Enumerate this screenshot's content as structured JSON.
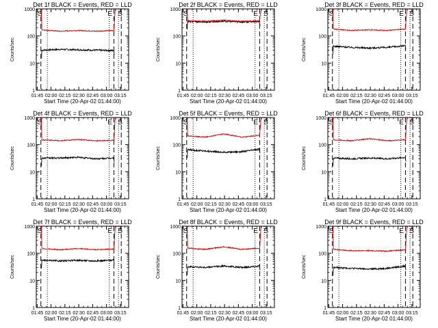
{
  "layout": {
    "rows": 3,
    "cols": 3
  },
  "common": {
    "ylabel": "Counts/sec",
    "xlabel": "Start Time (20-Apr-02 01:44:00)",
    "yticks": [
      "1",
      "10",
      "100",
      "1000"
    ],
    "xticks": [
      "01:45",
      "02:00",
      "02:15",
      "02:30",
      "02:45",
      "03:00",
      "03:15"
    ],
    "markers": [
      "S",
      "E",
      "S"
    ],
    "colors": {
      "events": "#000000",
      "lld": "#dd0000",
      "axes": "#000000"
    }
  },
  "chart_data": [
    {
      "type": "line",
      "title": "Det 1f BLACK = Events, RED = LLD",
      "yscale": "log",
      "ylim": [
        1,
        1000
      ],
      "xlim": [
        "01:44",
        "03:24"
      ],
      "grid": false,
      "x_range": [
        "01:50",
        "03:08"
      ],
      "series": [
        {
          "name": "Events",
          "values": [
            30,
            32,
            31,
            30,
            29
          ]
        },
        {
          "name": "LLD",
          "values": [
            170,
            150,
            160,
            150,
            160
          ]
        }
      ],
      "dashed_lines": [
        "01:49",
        "03:08",
        "03:16"
      ],
      "dotted_lines": [
        "01:56",
        "03:03",
        "03:13"
      ]
    },
    {
      "type": "line",
      "title": "Det 2f BLACK = Events, RED = LLD",
      "yscale": "log",
      "ylim": [
        1,
        1000
      ],
      "xlim": [
        "01:44",
        "03:24"
      ],
      "grid": false,
      "x_range": [
        "01:50",
        "03:08"
      ],
      "series": [
        {
          "name": "Events",
          "values": [
            340,
            330,
            350,
            330,
            340
          ]
        },
        {
          "name": "LLD",
          "values": [
            360,
            350,
            380,
            350,
            360
          ]
        }
      ],
      "dashed_lines": [
        "01:49",
        "03:08",
        "03:16"
      ],
      "dotted_lines": [
        "01:56",
        "03:03",
        "03:13"
      ]
    },
    {
      "type": "line",
      "title": "Det 3f BLACK = Events, RED = LLD",
      "yscale": "log",
      "ylim": [
        1,
        1000
      ],
      "xlim": [
        "01:44",
        "03:24"
      ],
      "grid": false,
      "x_range": [
        "01:50",
        "03:08"
      ],
      "series": [
        {
          "name": "Events",
          "values": [
            42,
            38,
            36,
            38,
            44
          ]
        },
        {
          "name": "LLD",
          "values": [
            180,
            160,
            170,
            160,
            180
          ]
        }
      ],
      "dashed_lines": [
        "01:49",
        "03:08",
        "03:16"
      ],
      "dotted_lines": [
        "01:56",
        "03:03",
        "03:13"
      ]
    },
    {
      "type": "line",
      "title": "Det 4f BLACK = Events, RED = LLD",
      "yscale": "log",
      "ylim": [
        1,
        1000
      ],
      "xlim": [
        "01:44",
        "03:24"
      ],
      "grid": false,
      "x_range": [
        "01:50",
        "03:08"
      ],
      "series": [
        {
          "name": "Events",
          "values": [
            32,
            32,
            34,
            30,
            32
          ]
        },
        {
          "name": "LLD",
          "values": [
            150,
            140,
            155,
            140,
            145
          ]
        }
      ],
      "dashed_lines": [
        "01:49",
        "03:08",
        "03:16"
      ],
      "dotted_lines": [
        "01:56",
        "03:03",
        "03:13"
      ]
    },
    {
      "type": "line",
      "title": "Det 5f BLACK = Events, RED = LLD",
      "yscale": "log",
      "ylim": [
        1,
        1000
      ],
      "xlim": [
        "01:44",
        "03:24"
      ],
      "grid": false,
      "x_range": [
        "01:50",
        "03:08"
      ],
      "series": [
        {
          "name": "Events",
          "values": [
            65,
            58,
            52,
            55,
            68
          ]
        },
        {
          "name": "LLD",
          "values": [
            210,
            190,
            250,
            190,
            220
          ]
        }
      ],
      "dashed_lines": [
        "01:49",
        "03:08",
        "03:16"
      ],
      "dotted_lines": [
        "01:56",
        "03:03",
        "03:13"
      ]
    },
    {
      "type": "line",
      "title": "Det 6f BLACK = Events, RED = LLD",
      "yscale": "log",
      "ylim": [
        1,
        1000
      ],
      "xlim": [
        "01:44",
        "03:24"
      ],
      "grid": false,
      "x_range": [
        "01:50",
        "03:08"
      ],
      "series": [
        {
          "name": "Events",
          "values": [
            32,
            30,
            32,
            30,
            34
          ]
        },
        {
          "name": "LLD",
          "values": [
            150,
            140,
            165,
            140,
            150
          ]
        }
      ],
      "dashed_lines": [
        "01:49",
        "03:08",
        "03:16"
      ],
      "dotted_lines": [
        "01:56",
        "03:03",
        "03:13"
      ]
    },
    {
      "type": "line",
      "title": "Det 7f BLACK = Events, RED = LLD",
      "yscale": "log",
      "ylim": [
        1,
        1000
      ],
      "xlim": [
        "01:44",
        "03:24"
      ],
      "grid": false,
      "x_range": [
        "01:50",
        "03:08"
      ],
      "series": [
        {
          "name": "Events",
          "values": [
            55,
            52,
            55,
            52,
            56
          ]
        },
        {
          "name": "LLD",
          "values": [
            150,
            135,
            150,
            135,
            145
          ]
        }
      ],
      "dashed_lines": [
        "01:49",
        "03:08",
        "03:16"
      ],
      "dotted_lines": [
        "01:56",
        "03:03",
        "03:13"
      ]
    },
    {
      "type": "line",
      "title": "Det 8f BLACK = Events, RED = LLD",
      "yscale": "log",
      "ylim": [
        1,
        1000
      ],
      "xlim": [
        "01:44",
        "03:24"
      ],
      "grid": false,
      "x_range": [
        "01:50",
        "03:08"
      ],
      "series": [
        {
          "name": "Events",
          "values": [
            32,
            30,
            34,
            30,
            34
          ]
        },
        {
          "name": "LLD",
          "values": [
            155,
            140,
            175,
            140,
            155
          ]
        }
      ],
      "dashed_lines": [
        "01:49",
        "03:08",
        "03:16"
      ],
      "dotted_lines": [
        "01:56",
        "03:03",
        "03:13"
      ]
    },
    {
      "type": "line",
      "title": "Det 9f BLACK = Events, RED = LLD",
      "yscale": "log",
      "ylim": [
        1,
        1000
      ],
      "xlim": [
        "01:44",
        "03:24"
      ],
      "grid": false,
      "x_range": [
        "01:50",
        "03:08"
      ],
      "series": [
        {
          "name": "Events",
          "values": [
            30,
            28,
            26,
            28,
            34
          ]
        },
        {
          "name": "LLD",
          "values": [
            140,
            125,
            125,
            120,
            135
          ]
        }
      ],
      "dashed_lines": [
        "01:49",
        "03:08",
        "03:16"
      ],
      "dotted_lines": [
        "01:56",
        "03:03",
        "03:13"
      ]
    }
  ]
}
